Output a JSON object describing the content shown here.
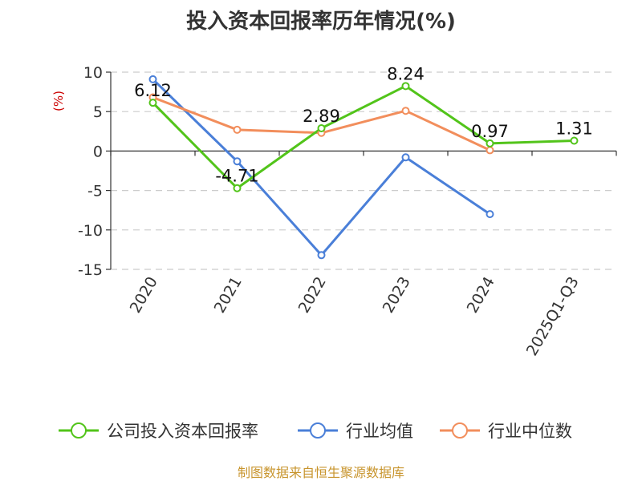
{
  "title": "投入资本回报率历年情况(%)",
  "footer": "制图数据来自恒生聚源数据库",
  "chart_data": {
    "type": "line",
    "title": "投入资本回报率历年情况(%)",
    "xlabel": "",
    "ylabel": "(%)",
    "ylim": [
      -15,
      10
    ],
    "yticks": [
      10,
      5,
      0,
      -5,
      -10,
      -15
    ],
    "grid": true,
    "legend_position": "bottom",
    "categories": [
      "2020",
      "2021",
      "2022",
      "2023",
      "2024",
      "2025Q1-Q3"
    ],
    "series": [
      {
        "name": "公司投入资本回报率",
        "color": "#52c41a",
        "values": [
          6.12,
          -4.71,
          2.89,
          8.24,
          0.97,
          1.31
        ],
        "labels": [
          "6.12",
          "-4.71",
          "2.89",
          "8.24",
          "0.97",
          "1.31"
        ]
      },
      {
        "name": "行业均值",
        "color": "#4a7fd8",
        "values": [
          9.1,
          -1.3,
          -13.2,
          -0.8,
          -8.0,
          null
        ]
      },
      {
        "name": "行业中位数",
        "color": "#f28e5c",
        "values": [
          6.8,
          2.7,
          2.3,
          5.1,
          0.1,
          null
        ]
      }
    ]
  }
}
